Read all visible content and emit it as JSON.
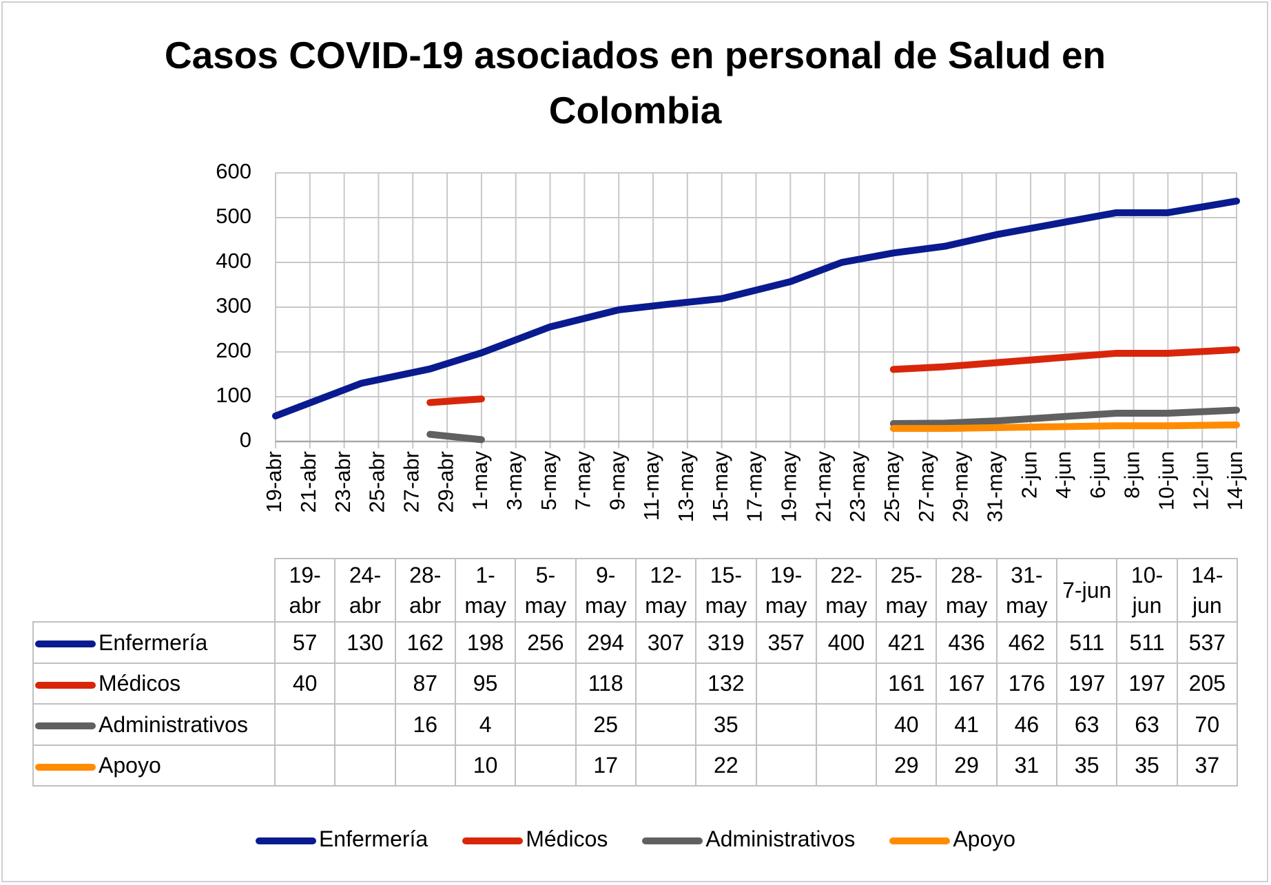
{
  "chart_data": {
    "type": "line",
    "title": "Casos COVID-19 asociados en personal de Salud en Colombia",
    "categories": [
      "19-abr",
      "24-abr",
      "28-abr",
      "1-may",
      "5-may",
      "9-may",
      "12-may",
      "15-may",
      "19-may",
      "22-may",
      "25-may",
      "28-may",
      "31-may",
      "7-jun",
      "10-jun",
      "14-jun"
    ],
    "x": [
      110,
      115,
      119,
      122,
      126,
      130,
      133,
      136,
      140,
      143,
      146,
      149,
      152,
      159,
      162,
      166
    ],
    "series": [
      {
        "name": "Enfermería",
        "color": "#0a1a8f",
        "values": [
          57,
          130,
          162,
          198,
          256,
          294,
          307,
          319,
          357,
          400,
          421,
          436,
          462,
          511,
          511,
          537
        ]
      },
      {
        "name": "Médicos",
        "color": "#d9260b",
        "values": [
          40,
          null,
          87,
          95,
          null,
          118,
          null,
          132,
          null,
          null,
          161,
          167,
          176,
          197,
          197,
          205
        ]
      },
      {
        "name": "Administrativos",
        "color": "#606060",
        "values": [
          null,
          null,
          16,
          4,
          null,
          25,
          null,
          35,
          null,
          null,
          40,
          41,
          46,
          63,
          63,
          70
        ]
      },
      {
        "name": "Apoyo",
        "color": "#ff8c00",
        "values": [
          null,
          null,
          null,
          10,
          null,
          17,
          null,
          22,
          null,
          null,
          29,
          29,
          31,
          35,
          35,
          37
        ]
      }
    ],
    "xlim": [
      110,
      166
    ],
    "xticks": [
      {
        "value": 110,
        "label": "19-abr"
      },
      {
        "value": 112,
        "label": "21-abr"
      },
      {
        "value": 114,
        "label": "23-abr"
      },
      {
        "value": 116,
        "label": "25-abr"
      },
      {
        "value": 118,
        "label": "27-abr"
      },
      {
        "value": 120,
        "label": "29-abr"
      },
      {
        "value": 122,
        "label": "1-may"
      },
      {
        "value": 124,
        "label": "3-may"
      },
      {
        "value": 126,
        "label": "5-may"
      },
      {
        "value": 128,
        "label": "7-may"
      },
      {
        "value": 130,
        "label": "9-may"
      },
      {
        "value": 132,
        "label": "11-may"
      },
      {
        "value": 134,
        "label": "13-may"
      },
      {
        "value": 136,
        "label": "15-may"
      },
      {
        "value": 138,
        "label": "17-may"
      },
      {
        "value": 140,
        "label": "19-may"
      },
      {
        "value": 142,
        "label": "21-may"
      },
      {
        "value": 144,
        "label": "23-may"
      },
      {
        "value": 146,
        "label": "25-may"
      },
      {
        "value": 148,
        "label": "27-may"
      },
      {
        "value": 150,
        "label": "29-may"
      },
      {
        "value": 152,
        "label": "31-may"
      },
      {
        "value": 154,
        "label": "2-jun"
      },
      {
        "value": 156,
        "label": "4-jun"
      },
      {
        "value": 158,
        "label": "6-jun"
      },
      {
        "value": 160,
        "label": "8-jun"
      },
      {
        "value": 162,
        "label": "10-jun"
      },
      {
        "value": 164,
        "label": "12-jun"
      },
      {
        "value": 166,
        "label": "14-jun"
      }
    ],
    "ylim": [
      0,
      600
    ],
    "yticks": [
      0,
      100,
      200,
      300,
      400,
      500,
      600
    ],
    "grid": true
  }
}
